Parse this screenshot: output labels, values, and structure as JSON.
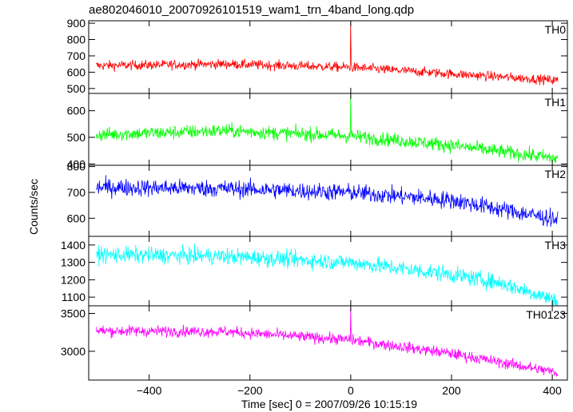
{
  "chart_data": {
    "type": "line",
    "title": "ae802046010_20070926101519_wam1_trn_4band_long.qdp",
    "xlabel": "Time [sec] 0 = 2007/09/26 10:15:19",
    "ylabel": "Counts/sec",
    "xlim": [
      -520,
      430
    ],
    "xticks": [
      -400,
      -200,
      0,
      200,
      400
    ],
    "panels": [
      {
        "name": "TH0",
        "color": "#ff0000",
        "ylim": [
          470,
          915
        ],
        "yticks": [
          500,
          600,
          700,
          800,
          900
        ],
        "baseline": [
          [
            -500,
            640
          ],
          [
            -250,
            650
          ],
          [
            0,
            630
          ],
          [
            200,
            590
          ],
          [
            410,
            550
          ]
        ],
        "noise": 28,
        "spike": {
          "x": 0,
          "y": 915
        }
      },
      {
        "name": "TH1",
        "color": "#00ff00",
        "ylim": [
          395,
          665
        ],
        "yticks": [
          400,
          500,
          600
        ],
        "baseline": [
          [
            -500,
            510
          ],
          [
            -250,
            525
          ],
          [
            0,
            505
          ],
          [
            200,
            470
          ],
          [
            410,
            420
          ]
        ],
        "noise": 25,
        "spike": {
          "x": 0,
          "y": 660
        }
      },
      {
        "name": "TH2",
        "color": "#0000ff",
        "ylim": [
          530,
          805
        ],
        "yticks": [
          600,
          700,
          800
        ],
        "baseline": [
          [
            -500,
            720
          ],
          [
            -250,
            715
          ],
          [
            0,
            700
          ],
          [
            200,
            670
          ],
          [
            410,
            595
          ]
        ],
        "noise": 32,
        "spike": null
      },
      {
        "name": "TH3",
        "color": "#00ffff",
        "ylim": [
          1050,
          1450
        ],
        "yticks": [
          1100,
          1200,
          1300,
          1400
        ],
        "baseline": [
          [
            -500,
            1345
          ],
          [
            -250,
            1335
          ],
          [
            0,
            1300
          ],
          [
            200,
            1230
          ],
          [
            300,
            1180
          ],
          [
            410,
            1080
          ]
        ],
        "noise": 45,
        "spike": null
      },
      {
        "name": "TH0123",
        "color": "#ff00ff",
        "ylim": [
          2620,
          3600
        ],
        "yticks": [
          3000,
          3500
        ],
        "baseline": [
          [
            -500,
            3270
          ],
          [
            -250,
            3260
          ],
          [
            0,
            3150
          ],
          [
            200,
            2970
          ],
          [
            410,
            2720
          ]
        ],
        "noise": 70,
        "spike": {
          "x": 0,
          "y": 3570
        }
      }
    ]
  }
}
